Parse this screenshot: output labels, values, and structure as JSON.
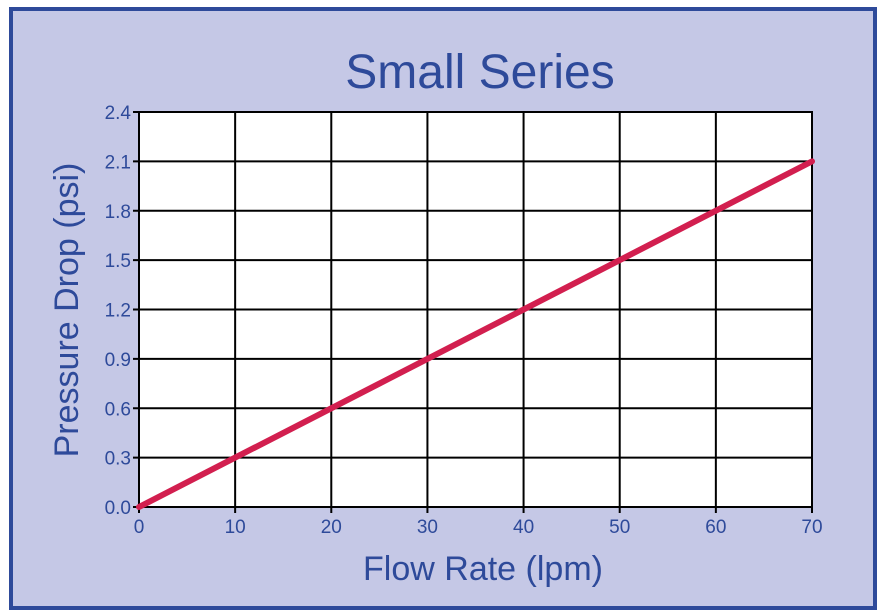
{
  "chart_data": {
    "type": "line",
    "title": "Small Series",
    "xlabel": "Flow Rate (lpm)",
    "ylabel": "Pressure Drop (psi)",
    "xlim": [
      0,
      70
    ],
    "ylim": [
      0,
      2.4
    ],
    "x_ticks": [
      "0",
      "10",
      "20",
      "30",
      "40",
      "50",
      "60",
      "70"
    ],
    "y_ticks": [
      "0.0",
      "0.3",
      "0.6",
      "0.9",
      "1.2",
      "1.5",
      "1.8",
      "2.1",
      "2.4"
    ],
    "grid": true,
    "series": [
      {
        "x": [
          0,
          70
        ],
        "y": [
          0.0,
          2.1
        ],
        "color": "#d21f4f"
      }
    ],
    "colors": {
      "frame": "#2e4a9a",
      "background": "#c5c8e6",
      "text": "#2e4a9a",
      "plot_bg": "#ffffff",
      "grid": "#000000"
    }
  }
}
